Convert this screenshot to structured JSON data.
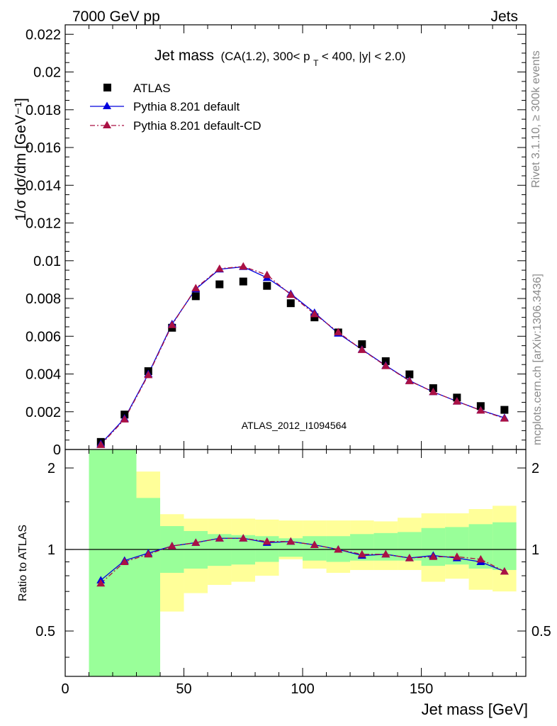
{
  "header": {
    "left": "7000 GeV pp",
    "right": "Jets"
  },
  "side_labels": {
    "rivet": "Rivet 3.1.10, ≥ 300k events",
    "mcplots": "mcplots.cern.ch [arXiv:1306.3436]"
  },
  "chart_data": [
    {
      "type": "scatter",
      "title": "Jet mass",
      "title_detail": "(CA(1.2), 300< p_T < 400, |y| < 2.0)",
      "title_detail_parts": {
        "a": "(CA(1.2), 300< p",
        "sub": "T",
        "b": " < 400, |y| < 2.0)"
      },
      "ylabel": "1/σ dσ/dm [GeV⁻¹]",
      "xlim": [
        0,
        194
      ],
      "ylim": [
        0,
        0.0225
      ],
      "yticks": [
        0,
        0.002,
        0.004,
        0.006,
        0.008,
        0.01,
        0.012,
        0.014,
        0.016,
        0.018,
        0.02,
        0.022
      ],
      "ytick_labels": [
        "0",
        "0.002",
        "0.004",
        "0.006",
        "0.008",
        "0.01",
        "0.012",
        "0.014",
        "0.016",
        "0.018",
        "0.02",
        "0.022"
      ],
      "watermark": "ATLAS_2012_I1094564",
      "legend_position": "top-left",
      "x": [
        15,
        25,
        35,
        45,
        55,
        65,
        75,
        85,
        95,
        105,
        115,
        125,
        135,
        145,
        155,
        165,
        175,
        185
      ],
      "series": [
        {
          "name": "ATLAS",
          "marker": "square",
          "color": "#000000",
          "values": [
            0.0004,
            0.00185,
            0.00415,
            0.00645,
            0.00812,
            0.00875,
            0.0089,
            0.00867,
            0.00775,
            0.007,
            0.0062,
            0.00558,
            0.00468,
            0.00398,
            0.00325,
            0.00275,
            0.0023,
            0.0021
          ]
        },
        {
          "name": "Pythia 8.201 default",
          "marker": "triangle",
          "color": "#0000dd",
          "line": "solid",
          "values": [
            0.0003,
            0.00165,
            0.004,
            0.00665,
            0.0085,
            0.00955,
            0.00968,
            0.0091,
            0.00825,
            0.00725,
            0.00615,
            0.0053,
            0.00445,
            0.00365,
            0.00305,
            0.00255,
            0.00208,
            0.00168
          ]
        },
        {
          "name": "Pythia 8.201 default-CD",
          "marker": "triangle",
          "color": "#aa1144",
          "line": "dashdot",
          "values": [
            0.00025,
            0.0016,
            0.00395,
            0.0066,
            0.00855,
            0.00958,
            0.0097,
            0.00925,
            0.0082,
            0.00718,
            0.00622,
            0.00528,
            0.00443,
            0.00363,
            0.00305,
            0.00255,
            0.00207,
            0.00165
          ]
        }
      ]
    },
    {
      "type": "line",
      "ylabel": "Ratio to ATLAS",
      "xlabel": "Jet mass [GeV]",
      "xlim": [
        0,
        194
      ],
      "ylim": [
        0.34,
        2.34
      ],
      "ytick_labels": [
        "0.5",
        "1",
        "2"
      ],
      "xticks": [
        0,
        50,
        100,
        150
      ],
      "xtick_labels": [
        "0",
        "50",
        "100",
        "150"
      ],
      "reference_line": 1,
      "bins": [
        [
          10,
          20
        ],
        [
          20,
          30
        ],
        [
          30,
          40
        ],
        [
          40,
          50
        ],
        [
          50,
          60
        ],
        [
          60,
          70
        ],
        [
          70,
          80
        ],
        [
          80,
          90
        ],
        [
          90,
          100
        ],
        [
          100,
          110
        ],
        [
          110,
          120
        ],
        [
          120,
          130
        ],
        [
          130,
          140
        ],
        [
          140,
          150
        ],
        [
          150,
          160
        ],
        [
          160,
          170
        ],
        [
          170,
          180
        ],
        [
          180,
          190
        ]
      ],
      "band_inner": {
        "color": "#99ff99",
        "low": [
          0.34,
          0.34,
          0.34,
          0.82,
          0.85,
          0.87,
          0.88,
          0.9,
          0.94,
          0.91,
          0.9,
          0.91,
          0.91,
          0.91,
          0.87,
          0.88,
          0.85,
          0.84
        ],
        "high": [
          2.34,
          2.34,
          1.55,
          1.22,
          1.17,
          1.14,
          1.13,
          1.12,
          1.1,
          1.12,
          1.12,
          1.14,
          1.15,
          1.16,
          1.2,
          1.21,
          1.24,
          1.26
        ]
      },
      "band_outer": {
        "color": "#ffff99",
        "low": [
          0.34,
          0.34,
          0.34,
          0.59,
          0.69,
          0.74,
          0.76,
          0.8,
          0.92,
          0.85,
          0.82,
          0.84,
          0.84,
          0.84,
          0.76,
          0.78,
          0.71,
          0.7
        ],
        "high": [
          2.34,
          2.34,
          1.94,
          1.35,
          1.3,
          1.3,
          1.3,
          1.29,
          1.28,
          1.28,
          1.28,
          1.28,
          1.27,
          1.31,
          1.36,
          1.36,
          1.41,
          1.45
        ]
      },
      "series": [
        {
          "name": "Pythia 8.201 default",
          "color": "#0000dd",
          "line": "solid",
          "values": [
            0.77,
            0.91,
            0.97,
            1.03,
            1.06,
            1.1,
            1.1,
            1.06,
            1.07,
            1.04,
            1.0,
            0.95,
            0.96,
            0.93,
            0.95,
            0.93,
            0.9,
            0.83
          ]
        },
        {
          "name": "Pythia 8.201 default-CD",
          "color": "#aa1144",
          "line": "dashdot",
          "values": [
            0.75,
            0.9,
            0.96,
            1.03,
            1.06,
            1.1,
            1.1,
            1.07,
            1.07,
            1.04,
            1.0,
            0.96,
            0.96,
            0.93,
            0.94,
            0.94,
            0.92,
            0.83
          ]
        }
      ]
    }
  ]
}
